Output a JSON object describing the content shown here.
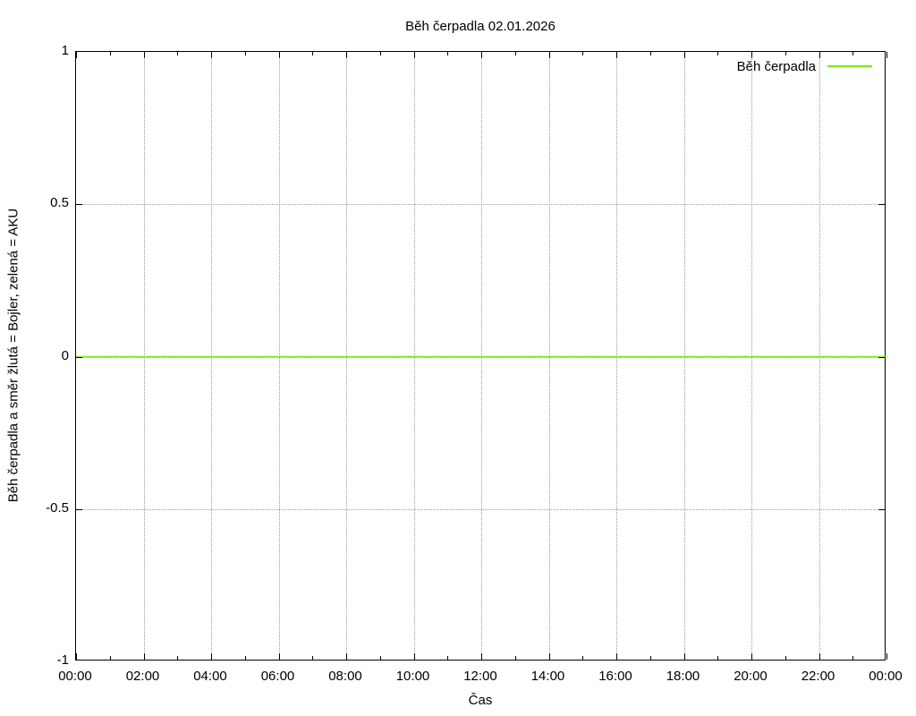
{
  "chart_data": {
    "type": "line",
    "title": "Běh čerpadla 02.01.2026",
    "xlabel": "Čas",
    "ylabel": "Běh čerpadla a směr žlutá = Bojler, zelená = AKU",
    "xlim_hours": [
      0,
      24
    ],
    "ylim": [
      -1,
      1
    ],
    "grid": true,
    "x_ticks": [
      {
        "hour": 0,
        "label": "00:00"
      },
      {
        "hour": 2,
        "label": "02:00"
      },
      {
        "hour": 4,
        "label": "04:00"
      },
      {
        "hour": 6,
        "label": "06:00"
      },
      {
        "hour": 8,
        "label": "08:00"
      },
      {
        "hour": 10,
        "label": "10:00"
      },
      {
        "hour": 12,
        "label": "12:00"
      },
      {
        "hour": 14,
        "label": "14:00"
      },
      {
        "hour": 16,
        "label": "16:00"
      },
      {
        "hour": 18,
        "label": "18:00"
      },
      {
        "hour": 20,
        "label": "20:00"
      },
      {
        "hour": 22,
        "label": "22:00"
      },
      {
        "hour": 24,
        "label": "00:00"
      }
    ],
    "x_minor_tick_hours": [
      1,
      3,
      5,
      7,
      9,
      11,
      13,
      15,
      17,
      19,
      21,
      23
    ],
    "y_ticks": [
      {
        "value": 1,
        "label": "1"
      },
      {
        "value": 0.5,
        "label": "0.5"
      },
      {
        "value": 0,
        "label": "0"
      },
      {
        "value": -0.5,
        "label": "-0.5"
      },
      {
        "value": -1,
        "label": "-1"
      }
    ],
    "legend": {
      "position": "top-right",
      "entries": [
        {
          "label": "Běh čerpadla",
          "color": "#7CE814"
        }
      ]
    },
    "series": [
      {
        "name": "Běh čerpadla",
        "color": "#7CE814",
        "x_hours": [
          0,
          24
        ],
        "values": [
          0,
          0
        ]
      }
    ],
    "colors": {
      "background": "#ffffff",
      "axis": "#000000",
      "grid": "#9a9a9a",
      "series_green": "#7CE814"
    }
  }
}
